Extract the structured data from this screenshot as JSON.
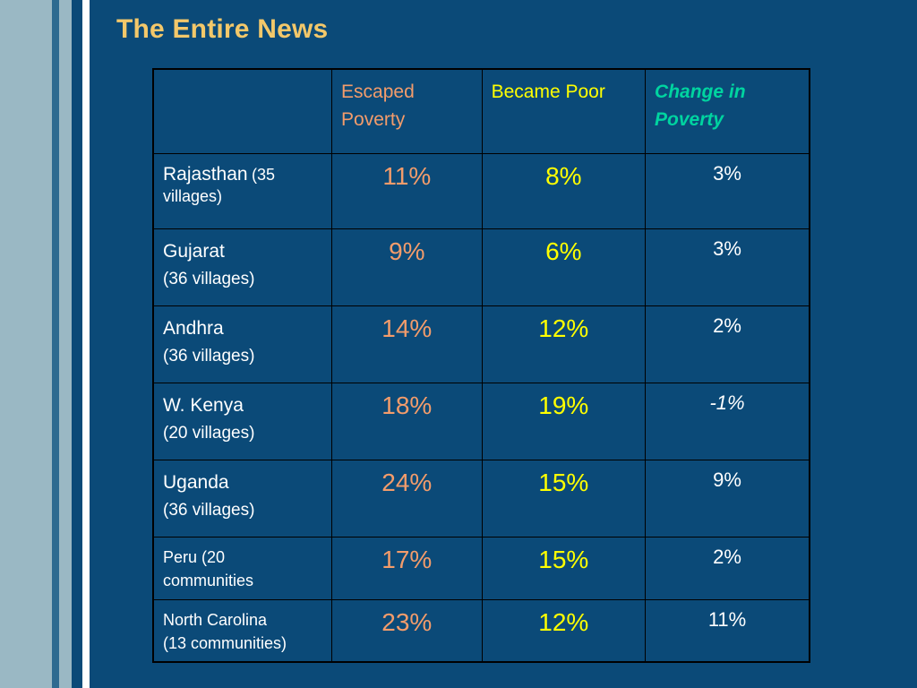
{
  "title": "The Entire News",
  "colors": {
    "background": "#0b4a78",
    "title": "#f3c86a",
    "escaped": "#f39c6b",
    "became": "#ffff00",
    "change_header": "#00d4a0",
    "text": "#ffffff"
  },
  "table": {
    "headers": {
      "blank": "",
      "escaped_line1": "Escaped",
      "escaped_line2": "Poverty",
      "became": "Became Poor",
      "change_line1": "Change in",
      "change_line2": "Poverty"
    },
    "rows": [
      {
        "region": "Rajasthan",
        "detail": "(35 villages)",
        "escaped": "11%",
        "became": "8%",
        "change": "3%"
      },
      {
        "region": "Gujarat",
        "detail": "(36 villages)",
        "escaped": "9%",
        "became": "6%",
        "change": "3%"
      },
      {
        "region": "Andhra",
        "detail": "(36 villages)",
        "escaped": "14%",
        "became": "12%",
        "change": "2%"
      },
      {
        "region": "W. Kenya",
        "detail": "(20 villages)",
        "escaped": "18%",
        "became": "19%",
        "change": "-1%"
      },
      {
        "region": "Uganda",
        "detail": "(36 villages)",
        "escaped": "24%",
        "became": "15%",
        "change": "9%"
      },
      {
        "region": "Peru (20",
        "detail": "communities",
        "escaped": "17%",
        "became": "15%",
        "change": "2%"
      },
      {
        "region": "North Carolina",
        "detail": "(13 communities)",
        "escaped": "23%",
        "became": "12%",
        "change": "11%"
      }
    ]
  }
}
